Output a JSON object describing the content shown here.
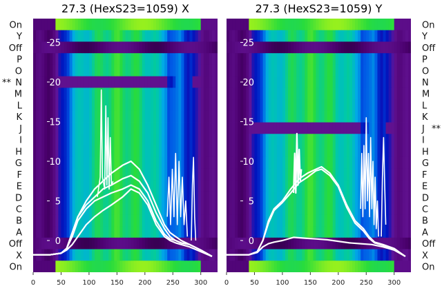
{
  "chart_data": [
    {
      "type": "heatmap",
      "title": "27.3 (HexS23=1059) X",
      "xlabel": "",
      "ylabel": "",
      "xlim": [
        0,
        330
      ],
      "ylim": [
        -4,
        28
      ],
      "x_ticks": [
        0,
        50,
        100,
        150,
        200,
        250,
        300
      ],
      "y_ticks": [
        0,
        5,
        10,
        15,
        20,
        25
      ],
      "y_tick_labels": [
        "0",
        "5",
        "10",
        "15",
        "20",
        "25"
      ],
      "row_labels": [
        "On",
        "Y",
        "Off",
        "P",
        "O",
        "N",
        "M",
        "L",
        "K",
        "J",
        "I",
        "H",
        "G",
        "F",
        "E",
        "D",
        "C",
        "B",
        "A",
        "Off",
        "X",
        "On"
      ],
      "row_markers": [
        {
          "label": "**",
          "row": "N"
        }
      ],
      "legend": "none",
      "series": [
        {
          "values": [
            [
              0,
              -1.8
            ],
            [
              30,
              -1.8
            ],
            [
              50,
              -1.6
            ],
            [
              60,
              -1.0
            ],
            [
              70,
              1.0
            ],
            [
              80,
              3.0
            ],
            [
              95,
              4.5
            ],
            [
              110,
              5.5
            ],
            [
              125,
              6.5
            ],
            [
              140,
              7.0
            ],
            [
              160,
              7.8
            ],
            [
              175,
              8.2
            ],
            [
              190,
              7.5
            ],
            [
              205,
              6.0
            ],
            [
              220,
              3.5
            ],
            [
              235,
              1.5
            ],
            [
              245,
              0.5
            ],
            [
              255,
              0.0
            ],
            [
              265,
              -0.3
            ],
            [
              280,
              -0.5
            ],
            [
              300,
              -1.2
            ],
            [
              320,
              -2.0
            ]
          ]
        },
        {
          "values": [
            [
              0,
              -1.8
            ],
            [
              30,
              -1.8
            ],
            [
              50,
              -1.6
            ],
            [
              60,
              -1.0
            ],
            [
              70,
              0.5
            ],
            [
              80,
              2.5
            ],
            [
              95,
              4.0
            ],
            [
              110,
              5.0
            ],
            [
              125,
              5.5
            ],
            [
              140,
              6.0
            ],
            [
              160,
              6.5
            ],
            [
              175,
              7.0
            ],
            [
              190,
              6.5
            ],
            [
              205,
              5.0
            ],
            [
              220,
              2.5
            ],
            [
              235,
              0.8
            ],
            [
              245,
              0.2
            ],
            [
              255,
              0.0
            ],
            [
              265,
              -0.3
            ],
            [
              280,
              -0.5
            ],
            [
              300,
              -1.2
            ],
            [
              320,
              -2.0
            ]
          ]
        },
        {
          "values": [
            [
              0,
              -1.8
            ],
            [
              30,
              -1.8
            ],
            [
              50,
              -1.6
            ],
            [
              60,
              -1.2
            ],
            [
              70,
              -0.5
            ],
            [
              80,
              0.5
            ],
            [
              95,
              2.0
            ],
            [
              110,
              3.0
            ],
            [
              125,
              3.8
            ],
            [
              140,
              4.5
            ],
            [
              160,
              5.5
            ],
            [
              175,
              6.5
            ],
            [
              190,
              6.0
            ],
            [
              205,
              4.5
            ],
            [
              220,
              2.0
            ],
            [
              235,
              0.5
            ],
            [
              245,
              0.0
            ],
            [
              255,
              -0.3
            ],
            [
              265,
              -0.5
            ],
            [
              280,
              -0.8
            ],
            [
              300,
              -1.4
            ],
            [
              320,
              -2.0
            ]
          ]
        },
        {
          "values": [
            [
              0,
              -1.8
            ],
            [
              30,
              -1.8
            ],
            [
              50,
              -1.6
            ],
            [
              60,
              -1.0
            ],
            [
              70,
              1.0
            ],
            [
              80,
              3.0
            ],
            [
              95,
              5.0
            ],
            [
              110,
              6.5
            ],
            [
              125,
              7.5
            ],
            [
              140,
              8.5
            ],
            [
              160,
              9.5
            ],
            [
              175,
              10.0
            ],
            [
              190,
              9.0
            ],
            [
              205,
              7.0
            ],
            [
              220,
              4.5
            ],
            [
              235,
              2.0
            ],
            [
              245,
              1.0
            ],
            [
              255,
              0.5
            ],
            [
              265,
              0.0
            ],
            [
              280,
              -0.5
            ],
            [
              300,
              -1.2
            ],
            [
              320,
              -2.0
            ]
          ]
        },
        {
          "values": [
            [
              115,
              5.5
            ],
            [
              120,
              8.0
            ],
            [
              122,
              19.0
            ],
            [
              124,
              8.0
            ],
            [
              128,
              6.5
            ],
            [
              130,
              17.0
            ],
            [
              132,
              7.0
            ],
            [
              134,
              15.5
            ],
            [
              136,
              6.5
            ],
            [
              138,
              13.0
            ],
            [
              140,
              7.0
            ],
            [
              143,
              7.5
            ]
          ]
        },
        {
          "values": [
            [
              240,
              3.0
            ],
            [
              243,
              8.0
            ],
            [
              246,
              2.0
            ],
            [
              249,
              9.0
            ],
            [
              252,
              3.0
            ],
            [
              255,
              11.0
            ],
            [
              258,
              2.0
            ],
            [
              261,
              10.0
            ],
            [
              264,
              3.0
            ],
            [
              267,
              8.0
            ],
            [
              270,
              2.0
            ],
            [
              273,
              5.0
            ],
            [
              276,
              0.5
            ]
          ]
        },
        {
          "values": [
            [
              283,
              0.0
            ],
            [
              285,
              7.0
            ],
            [
              287,
              10.5
            ],
            [
              289,
              3.0
            ],
            [
              291,
              0.0
            ]
          ]
        }
      ]
    },
    {
      "type": "heatmap",
      "title": "27.3 (HexS23=1059) Y",
      "xlabel": "",
      "ylabel": "",
      "xlim": [
        0,
        330
      ],
      "ylim": [
        -4,
        28
      ],
      "x_ticks": [
        0,
        50,
        100,
        150,
        200,
        250,
        300
      ],
      "y_ticks": [
        0,
        5,
        10,
        15,
        20,
        25
      ],
      "y_tick_labels": [
        "0",
        "5",
        "10",
        "15",
        "20",
        "25"
      ],
      "row_labels": [
        "On",
        "Y",
        "Off",
        "P",
        "O",
        "N",
        "M",
        "L",
        "K",
        "J",
        "I",
        "H",
        "G",
        "F",
        "E",
        "D",
        "C",
        "B",
        "A",
        "Off",
        "X",
        "On"
      ],
      "row_markers": [
        {
          "label": "**",
          "row": "J"
        }
      ],
      "legend": "none",
      "series": [
        {
          "values": [
            [
              0,
              -1.8
            ],
            [
              40,
              -1.8
            ],
            [
              55,
              -1.4
            ],
            [
              65,
              0.0
            ],
            [
              75,
              2.5
            ],
            [
              85,
              4.0
            ],
            [
              100,
              5.0
            ],
            [
              115,
              6.5
            ],
            [
              130,
              7.8
            ],
            [
              145,
              8.5
            ],
            [
              160,
              9.0
            ],
            [
              170,
              9.3
            ],
            [
              185,
              8.5
            ],
            [
              200,
              7.0
            ],
            [
              215,
              4.5
            ],
            [
              230,
              2.5
            ],
            [
              245,
              1.5
            ],
            [
              255,
              0.5
            ],
            [
              265,
              -0.2
            ],
            [
              280,
              -0.5
            ],
            [
              300,
              -1.0
            ],
            [
              320,
              -2.0
            ]
          ]
        },
        {
          "values": [
            [
              0,
              -1.8
            ],
            [
              40,
              -1.8
            ],
            [
              55,
              -1.4
            ],
            [
              65,
              0.0
            ],
            [
              75,
              2.2
            ],
            [
              85,
              3.8
            ],
            [
              100,
              4.8
            ],
            [
              115,
              6.0
            ],
            [
              130,
              7.3
            ],
            [
              145,
              8.0
            ],
            [
              160,
              8.8
            ],
            [
              170,
              9.0
            ],
            [
              185,
              8.2
            ],
            [
              200,
              6.8
            ],
            [
              215,
              4.2
            ],
            [
              230,
              2.2
            ],
            [
              245,
              1.2
            ],
            [
              255,
              0.3
            ],
            [
              265,
              -0.3
            ],
            [
              280,
              -0.6
            ],
            [
              300,
              -1.1
            ],
            [
              320,
              -2.0
            ]
          ]
        },
        {
          "values": [
            [
              0,
              -1.8
            ],
            [
              40,
              -1.8
            ],
            [
              55,
              -1.5
            ],
            [
              65,
              -0.8
            ],
            [
              75,
              -0.4
            ],
            [
              85,
              -0.2
            ],
            [
              100,
              0.0
            ],
            [
              120,
              0.4
            ],
            [
              140,
              0.3
            ],
            [
              160,
              0.2
            ],
            [
              180,
              0.1
            ],
            [
              200,
              -0.1
            ],
            [
              220,
              -0.3
            ],
            [
              240,
              -0.4
            ],
            [
              260,
              -0.5
            ],
            [
              280,
              -0.8
            ],
            [
              300,
              -1.2
            ],
            [
              320,
              -2.0
            ]
          ]
        },
        {
          "values": [
            [
              120,
              6.0
            ],
            [
              122,
              11.0
            ],
            [
              124,
              6.0
            ],
            [
              126,
              13.5
            ],
            [
              128,
              7.0
            ],
            [
              130,
              11.5
            ],
            [
              132,
              7.5
            ],
            [
              134,
              9.0
            ]
          ]
        },
        {
          "values": [
            [
              240,
              4.0
            ],
            [
              242,
              11.0
            ],
            [
              244,
              3.0
            ],
            [
              246,
              12.0
            ],
            [
              248,
              4.0
            ],
            [
              250,
              15.5
            ],
            [
              252,
              5.0
            ],
            [
              254,
              11.0
            ],
            [
              256,
              3.0
            ],
            [
              258,
              13.0
            ],
            [
              260,
              4.0
            ],
            [
              262,
              10.0
            ],
            [
              264,
              2.0
            ],
            [
              266,
              8.0
            ],
            [
              268,
              1.5
            ],
            [
              270,
              5.0
            ],
            [
              272,
              0.5
            ]
          ]
        },
        {
          "values": [
            [
              277,
              0.5
            ],
            [
              279,
              8.0
            ],
            [
              281,
              13.0
            ],
            [
              283,
              7.0
            ],
            [
              285,
              2.0
            ]
          ]
        }
      ]
    }
  ]
}
